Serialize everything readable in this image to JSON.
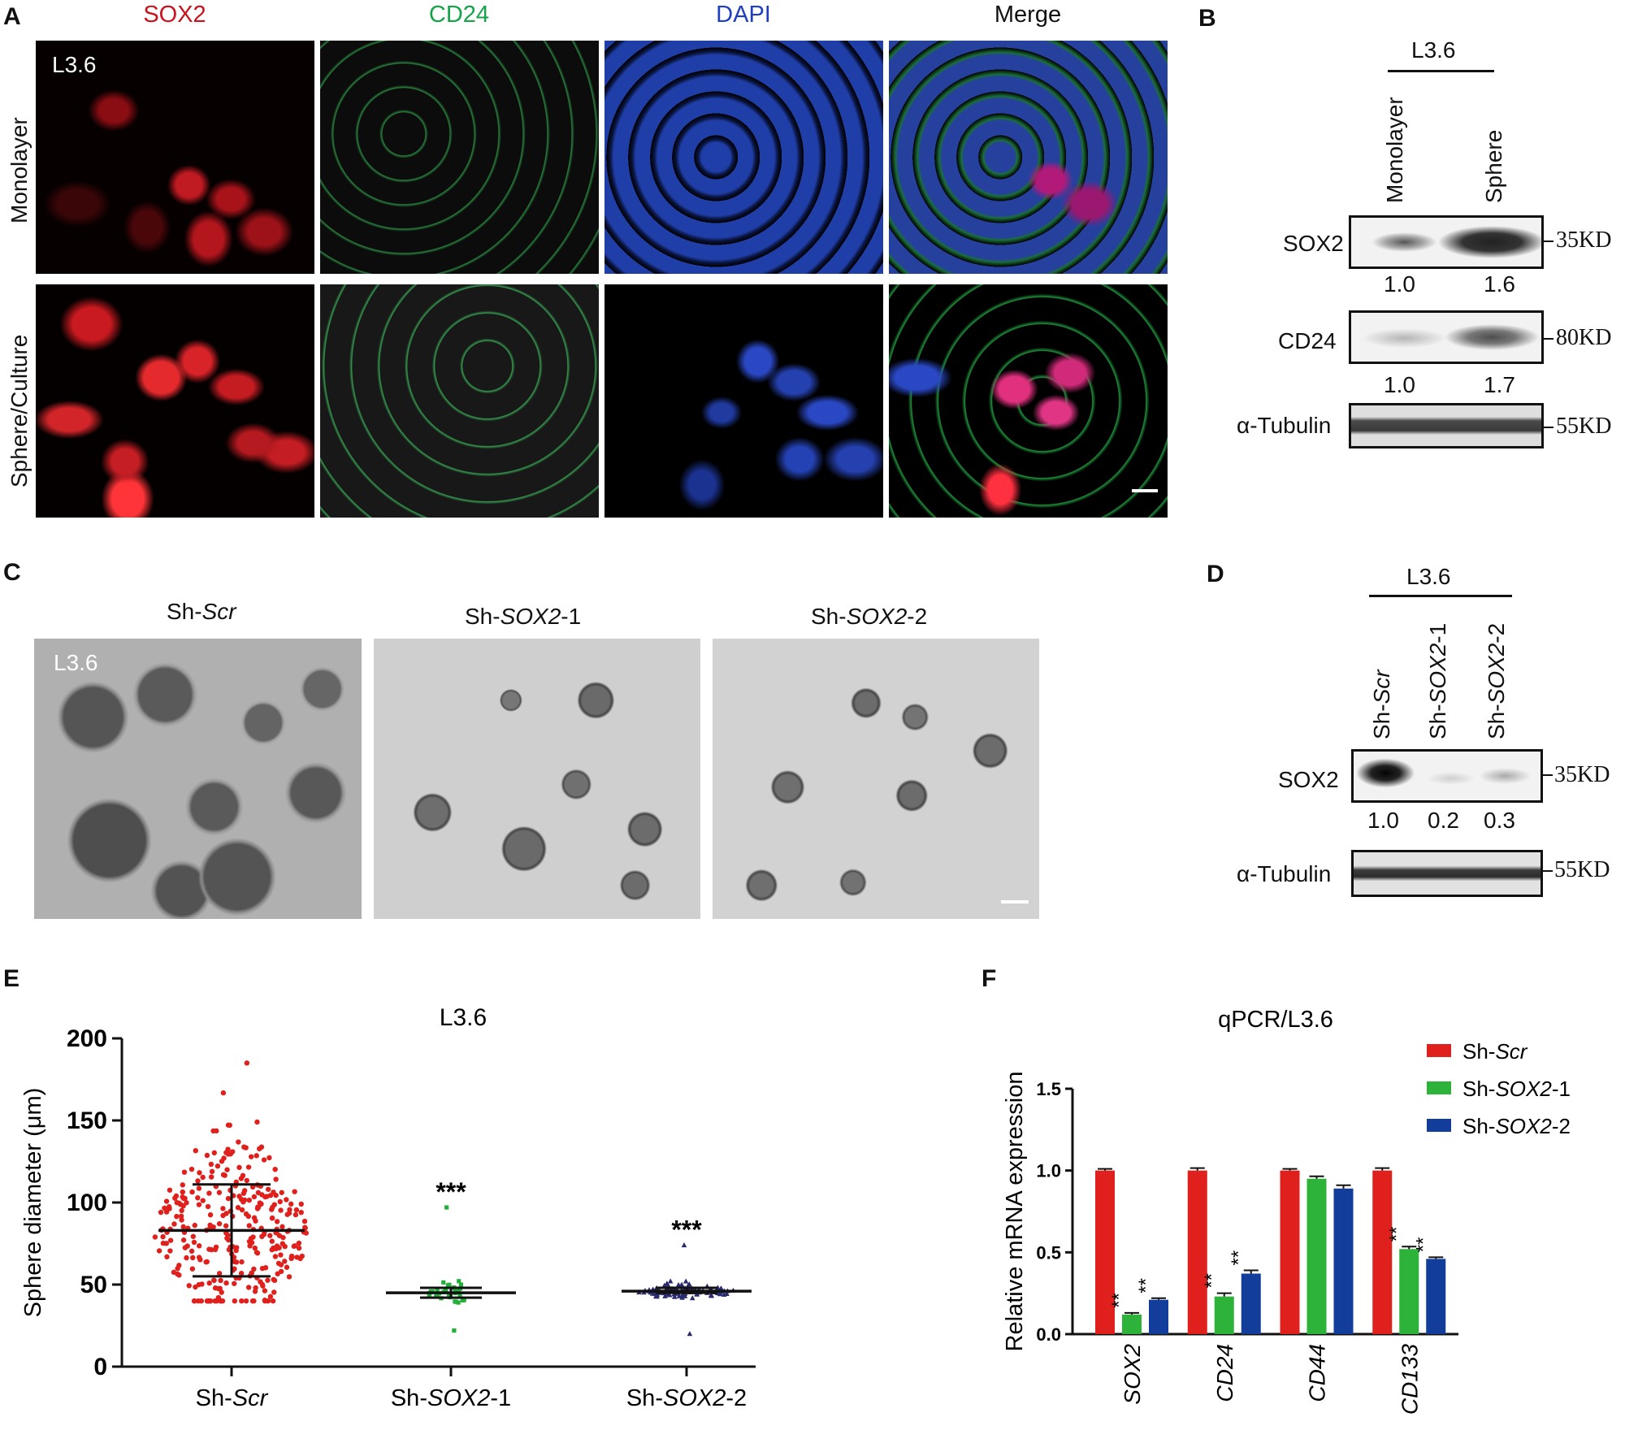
{
  "panelA": {
    "letter": "A",
    "channels": [
      "SOX2",
      "CD24",
      "DAPI",
      "Merge"
    ],
    "channel_colors": [
      "#c8141e",
      "#16a34a",
      "#1f3fbf",
      "#111111"
    ],
    "rows": [
      "Monolayer",
      "Sphere/Culture"
    ],
    "cell_line": "L3.6"
  },
  "panelB": {
    "letter": "B",
    "cell_line": "L3.6",
    "lanes": [
      "Monolayer",
      "Sphere"
    ],
    "bands": [
      {
        "name": "SOX2",
        "kd": "35KD",
        "quant": [
          "1.0",
          "1.6"
        ]
      },
      {
        "name": "CD24",
        "kd": "80KD",
        "quant": [
          "1.0",
          "1.7"
        ]
      },
      {
        "name": "α-Tubulin",
        "kd": "55KD",
        "quant": []
      }
    ]
  },
  "panelC": {
    "letter": "C",
    "cell_line": "L3.6",
    "conditions": [
      {
        "prefix": "Sh-",
        "gene": "Scr",
        "suffix": ""
      },
      {
        "prefix": "Sh-",
        "gene": "SOX2",
        "suffix": "-1"
      },
      {
        "prefix": "Sh-",
        "gene": "SOX2",
        "suffix": "-2"
      }
    ]
  },
  "panelD": {
    "letter": "D",
    "cell_line": "L3.6",
    "lanes": [
      {
        "prefix": "Sh-",
        "gene": "Scr",
        "suffix": ""
      },
      {
        "prefix": "Sh-",
        "gene": "SOX2",
        "suffix": "-1"
      },
      {
        "prefix": "Sh-",
        "gene": "SOX2",
        "suffix": "-2"
      }
    ],
    "bands": [
      {
        "name": "SOX2",
        "kd": "35KD",
        "quant": [
          "1.0",
          "0.2",
          "0.3"
        ]
      },
      {
        "name": "α-Tubulin",
        "kd": "55KD",
        "quant": []
      }
    ]
  },
  "chart_data": [
    {
      "panel": "E",
      "type": "scatter",
      "title": "L3.6",
      "ylabel": "Sphere diameter (μm)",
      "ylim": [
        0,
        200
      ],
      "yticks": [
        0,
        50,
        100,
        150,
        200
      ],
      "groups": [
        {
          "label_prefix": "Sh-",
          "label_gene": "Scr",
          "label_suffix": "",
          "color": "#e0201c",
          "marker": "circle",
          "mean": 83,
          "sd_upper": 111,
          "sd_lower": 55,
          "n": 320,
          "min": 40,
          "max": 185,
          "significance": ""
        },
        {
          "label_prefix": "Sh-",
          "label_gene": "SOX2",
          "label_suffix": "-1",
          "color": "#22b03a",
          "marker": "square",
          "mean": 45,
          "sd_upper": 48,
          "sd_lower": 42,
          "n": 35,
          "min": 22,
          "max": 97,
          "significance": "***"
        },
        {
          "label_prefix": "Sh-",
          "label_gene": "SOX2",
          "label_suffix": "-2",
          "color": "#2a2a6e",
          "marker": "triangle",
          "mean": 46,
          "sd_upper": 48,
          "sd_lower": 45,
          "n": 110,
          "min": 20,
          "max": 74,
          "significance": "***"
        }
      ]
    },
    {
      "panel": "F",
      "type": "bar",
      "title": "qPCR/L3.6",
      "ylabel": "Relative mRNA expression",
      "ylim": [
        0,
        1.5
      ],
      "yticks": [
        "0.0",
        "0.5",
        "1.0",
        "1.5"
      ],
      "categories": [
        "SOX2",
        "CD24",
        "CD44",
        "CD133"
      ],
      "series": [
        {
          "name_prefix": "Sh-",
          "name_gene": "Scr",
          "name_suffix": "",
          "color": "#e0201c",
          "values": [
            1.0,
            1.0,
            1.0,
            1.0
          ],
          "errors": [
            0.01,
            0.015,
            0.01,
            0.015
          ],
          "sig": [
            "",
            "",
            "",
            ""
          ]
        },
        {
          "name_prefix": "Sh-",
          "name_gene": "SOX2",
          "name_suffix": "-1",
          "color": "#2eb33a",
          "values": [
            0.12,
            0.23,
            0.95,
            0.52
          ],
          "errors": [
            0.01,
            0.02,
            0.015,
            0.015
          ],
          "sig": [
            "**",
            "**",
            "",
            "**"
          ]
        },
        {
          "name_prefix": "Sh-",
          "name_gene": "SOX2",
          "name_suffix": "-2",
          "color": "#123d9a",
          "values": [
            0.21,
            0.37,
            0.89,
            0.46
          ],
          "errors": [
            0.01,
            0.02,
            0.02,
            0.01
          ],
          "sig": [
            "**",
            "**",
            "",
            "**"
          ]
        }
      ],
      "legend_position": "top-right"
    }
  ]
}
